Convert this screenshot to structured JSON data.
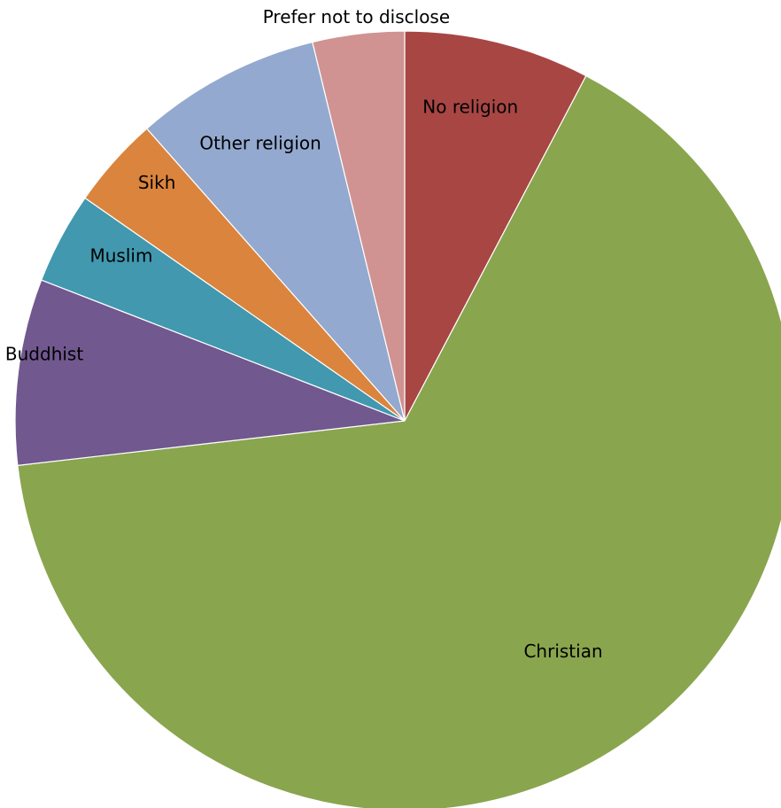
{
  "chart_data": {
    "type": "pie",
    "title": "",
    "slices": [
      {
        "label": "No religion",
        "value": 7.7,
        "color": "#A84644"
      },
      {
        "label": "Christian",
        "value": 65.4,
        "color": "#89A54E"
      },
      {
        "label": "Buddhist",
        "value": 7.7,
        "color": "#71588F"
      },
      {
        "label": "Muslim",
        "value": 3.8,
        "color": "#4198AF"
      },
      {
        "label": "Sikh",
        "value": 3.8,
        "color": "#DB843D"
      },
      {
        "label": "Other religion",
        "value": 7.7,
        "color": "#93A9CF"
      },
      {
        "label": "Prefer not to disclose",
        "value": 3.8,
        "color": "#D09392"
      }
    ],
    "start_angle_deg": 0,
    "direction": "clockwise",
    "label_placement": "inside",
    "legend": "none"
  }
}
